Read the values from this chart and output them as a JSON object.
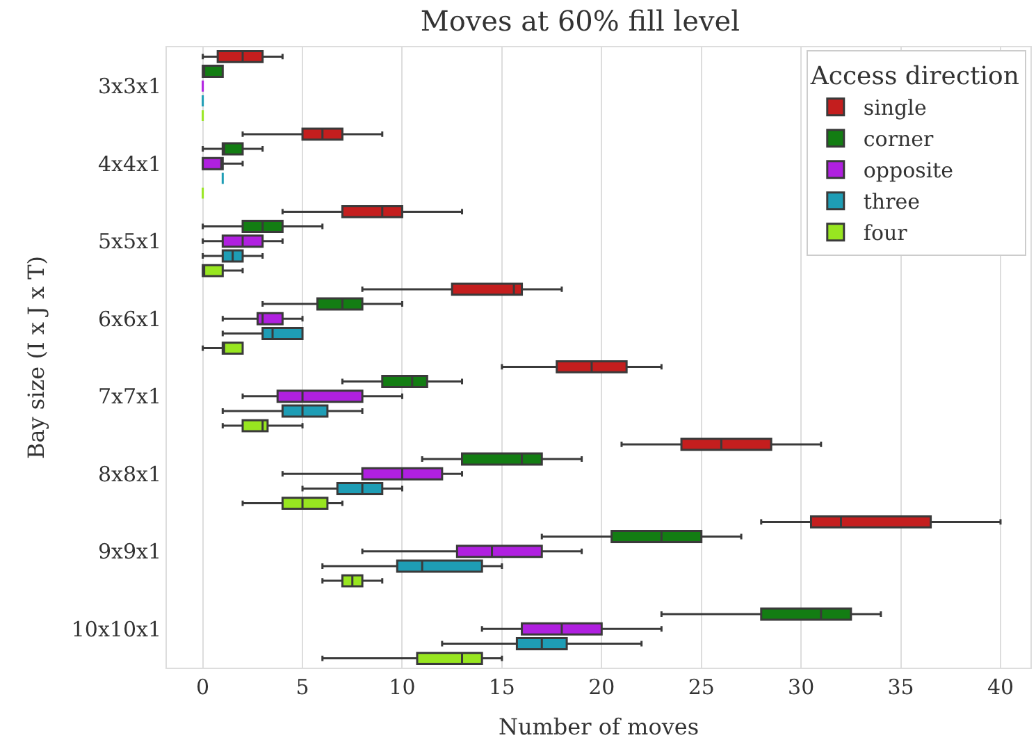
{
  "chart_data": {
    "type": "box",
    "title": "Moves at 60% fill level",
    "xlabel": "Number of moves",
    "ylabel": "Bay size (I x J x T)",
    "legend_title": "Access direction",
    "orientation": "horizontal",
    "categories": [
      "3x3x1",
      "4x4x1",
      "5x5x1",
      "6x6x1",
      "7x7x1",
      "8x8x1",
      "9x9x1",
      "10x10x1"
    ],
    "xlim": [
      -1.8,
      41.5
    ],
    "xticks": [
      0,
      5,
      10,
      15,
      20,
      25,
      30,
      35,
      40
    ],
    "grid": "x",
    "legend": "top right",
    "series": [
      {
        "name": "single",
        "color": "#c41e1e",
        "boxes": [
          {
            "low": 0,
            "q1": 0.75,
            "median": 2,
            "q3": 3,
            "high": 4
          },
          {
            "low": 2,
            "q1": 5,
            "median": 6,
            "q3": 7,
            "high": 9
          },
          {
            "low": 4,
            "q1": 7,
            "median": 9,
            "q3": 10,
            "high": 13
          },
          {
            "low": 8,
            "q1": 12.5,
            "median": 15.6,
            "q3": 16,
            "high": 18
          },
          {
            "low": 15,
            "q1": 17.75,
            "median": 19.5,
            "q3": 21.25,
            "high": 23
          },
          {
            "low": 21,
            "q1": 24,
            "median": 26,
            "q3": 28.5,
            "high": 31
          },
          {
            "low": 28,
            "q1": 30.5,
            "median": 32,
            "q3": 36.5,
            "high": 40
          },
          null
        ]
      },
      {
        "name": "corner",
        "color": "#137d13",
        "boxes": [
          {
            "low": 0,
            "q1": 0,
            "median": 0,
            "q3": 1,
            "high": 1
          },
          {
            "low": 0,
            "q1": 1,
            "median": 1,
            "q3": 2,
            "high": 3
          },
          {
            "low": 0,
            "q1": 2,
            "median": 3,
            "q3": 4,
            "high": 6
          },
          {
            "low": 3,
            "q1": 5.75,
            "median": 7,
            "q3": 8,
            "high": 10
          },
          {
            "low": 7,
            "q1": 9,
            "median": 10.5,
            "q3": 11.25,
            "high": 13
          },
          {
            "low": 11,
            "q1": 13,
            "median": 16,
            "q3": 17,
            "high": 19
          },
          {
            "low": 17,
            "q1": 20.5,
            "median": 23,
            "q3": 25,
            "high": 27
          },
          {
            "low": 23,
            "q1": 28,
            "median": 31,
            "q3": 32.5,
            "high": 34
          }
        ]
      },
      {
        "name": "opposite",
        "color": "#b020e0",
        "boxes": [
          {
            "low": 0,
            "q1": 0,
            "median": 0,
            "q3": 0,
            "high": 0
          },
          {
            "low": 0,
            "q1": 0,
            "median": 1,
            "q3": 1,
            "high": 2
          },
          {
            "low": 0,
            "q1": 1,
            "median": 2,
            "q3": 3,
            "high": 4
          },
          {
            "low": 1,
            "q1": 2.75,
            "median": 3,
            "q3": 4,
            "high": 5
          },
          {
            "low": 2,
            "q1": 3.75,
            "median": 5,
            "q3": 8,
            "high": 10
          },
          {
            "low": 4,
            "q1": 8,
            "median": 10,
            "q3": 12,
            "high": 13
          },
          {
            "low": 8,
            "q1": 12.75,
            "median": 14.5,
            "q3": 17,
            "high": 19
          },
          {
            "low": 14,
            "q1": 16,
            "median": 18,
            "q3": 20,
            "high": 23
          }
        ]
      },
      {
        "name": "three",
        "color": "#1e9db5",
        "boxes": [
          {
            "low": 0,
            "q1": 0,
            "median": 0,
            "q3": 0,
            "high": 0
          },
          {
            "low": 1,
            "q1": 1,
            "median": 1,
            "q3": 1,
            "high": 1
          },
          {
            "low": 0,
            "q1": 1,
            "median": 1.5,
            "q3": 2,
            "high": 3
          },
          {
            "low": 1,
            "q1": 3,
            "median": 3.5,
            "q3": 5,
            "high": 5
          },
          {
            "low": 1,
            "q1": 4,
            "median": 5,
            "q3": 6.25,
            "high": 8
          },
          {
            "low": 5,
            "q1": 6.75,
            "median": 8,
            "q3": 9,
            "high": 10
          },
          {
            "low": 6,
            "q1": 9.75,
            "median": 11,
            "q3": 14,
            "high": 15
          },
          {
            "low": 12,
            "q1": 15.75,
            "median": 17,
            "q3": 18.25,
            "high": 22
          }
        ]
      },
      {
        "name": "four",
        "color": "#98e620",
        "boxes": [
          {
            "low": 0,
            "q1": 0,
            "median": 0,
            "q3": 0,
            "high": 0
          },
          {
            "low": 0,
            "q1": 0,
            "median": 0,
            "q3": 0,
            "high": 0
          },
          {
            "low": 0,
            "q1": 0,
            "median": 0,
            "q3": 1,
            "high": 2
          },
          {
            "low": 0,
            "q1": 1,
            "median": 1,
            "q3": 2,
            "high": 2
          },
          {
            "low": 1,
            "q1": 2,
            "median": 3,
            "q3": 3.25,
            "high": 5
          },
          {
            "low": 2,
            "q1": 4,
            "median": 5,
            "q3": 6.25,
            "high": 7
          },
          {
            "low": 6,
            "q1": 7,
            "median": 7.5,
            "q3": 8,
            "high": 9
          },
          {
            "low": 6,
            "q1": 10.75,
            "median": 13,
            "q3": 14,
            "high": 15
          }
        ]
      }
    ]
  }
}
